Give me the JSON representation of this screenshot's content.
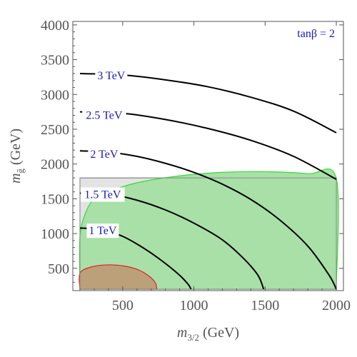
{
  "chart_data": {
    "type": "line",
    "xlabel": "m3/2 (GeV)",
    "ylabel": "mg̃ (GeV)",
    "xlim": [
      150,
      2050
    ],
    "ylim": [
      180,
      4050
    ],
    "x_ticks": [
      500,
      1000,
      1500,
      2000
    ],
    "y_ticks": [
      500,
      1000,
      1500,
      2000,
      2500,
      3000,
      3500,
      4000
    ],
    "annotation": "tanβ = 2",
    "colors": {
      "contour": "#000000",
      "label": "#1a1ab4",
      "gray_region": "#e3e3e3",
      "green_region": "#a8e0a8",
      "green_edge": "#33dd33",
      "brown_region": "#bba07a",
      "red_edge": "#dd2222",
      "axis": "#555555"
    },
    "regions": [
      {
        "type": "rect",
        "x": [
          200,
          2000
        ],
        "y": [
          200,
          1800
        ]
      },
      {
        "type": "filled",
        "points": [
          [
            200,
            200
          ],
          [
            200,
            950
          ],
          [
            240,
            1300
          ],
          [
            300,
            1500
          ],
          [
            400,
            1600
          ],
          [
            600,
            1730
          ],
          [
            900,
            1830
          ],
          [
            1200,
            1880
          ],
          [
            1500,
            1890
          ],
          [
            1800,
            1860
          ],
          [
            2000,
            1790
          ],
          [
            2000,
            200
          ]
        ]
      },
      {
        "type": "filled",
        "points": [
          [
            200,
            200
          ],
          [
            200,
            430
          ],
          [
            280,
            520
          ],
          [
            400,
            550
          ],
          [
            520,
            530
          ],
          [
            620,
            470
          ],
          [
            690,
            380
          ],
          [
            730,
            290
          ],
          [
            740,
            200
          ]
        ]
      }
    ],
    "series": [
      {
        "label": "1 TeV",
        "points": [
          [
            200,
            1080
          ],
          [
            300,
            1070
          ],
          [
            400,
            1030
          ],
          [
            500,
            960
          ],
          [
            600,
            850
          ],
          [
            700,
            720
          ],
          [
            800,
            570
          ],
          [
            900,
            400
          ],
          [
            960,
            270
          ],
          [
            980,
            200
          ]
        ]
      },
      {
        "label": "1.5 TeV",
        "points": [
          [
            200,
            1580
          ],
          [
            400,
            1570
          ],
          [
            600,
            1480
          ],
          [
            800,
            1340
          ],
          [
            1000,
            1150
          ],
          [
            1200,
            910
          ],
          [
            1350,
            640
          ],
          [
            1450,
            400
          ],
          [
            1490,
            200
          ]
        ]
      },
      {
        "label": "2 TeV",
        "points": [
          [
            200,
            2190
          ],
          [
            400,
            2170
          ],
          [
            600,
            2110
          ],
          [
            800,
            2010
          ],
          [
            1000,
            1880
          ],
          [
            1200,
            1710
          ],
          [
            1400,
            1490
          ],
          [
            1600,
            1200
          ],
          [
            1800,
            820
          ],
          [
            1950,
            400
          ],
          [
            2000,
            200
          ]
        ]
      },
      {
        "label": "2.5 TeV",
        "points": [
          [
            200,
            2750
          ],
          [
            500,
            2730
          ],
          [
            800,
            2640
          ],
          [
            1100,
            2510
          ],
          [
            1400,
            2340
          ],
          [
            1700,
            2110
          ],
          [
            2000,
            1780
          ]
        ]
      },
      {
        "label": "3 TeV",
        "points": [
          [
            200,
            3300
          ],
          [
            500,
            3280
          ],
          [
            800,
            3210
          ],
          [
            1100,
            3110
          ],
          [
            1400,
            2960
          ],
          [
            1700,
            2760
          ],
          [
            2000,
            2450
          ]
        ]
      }
    ],
    "contour_label_positions": [
      [
        360,
        1040
      ],
      [
        360,
        1560
      ],
      [
        370,
        2140
      ],
      [
        370,
        2700
      ],
      [
        420,
        3270
      ]
    ],
    "grid": false
  }
}
